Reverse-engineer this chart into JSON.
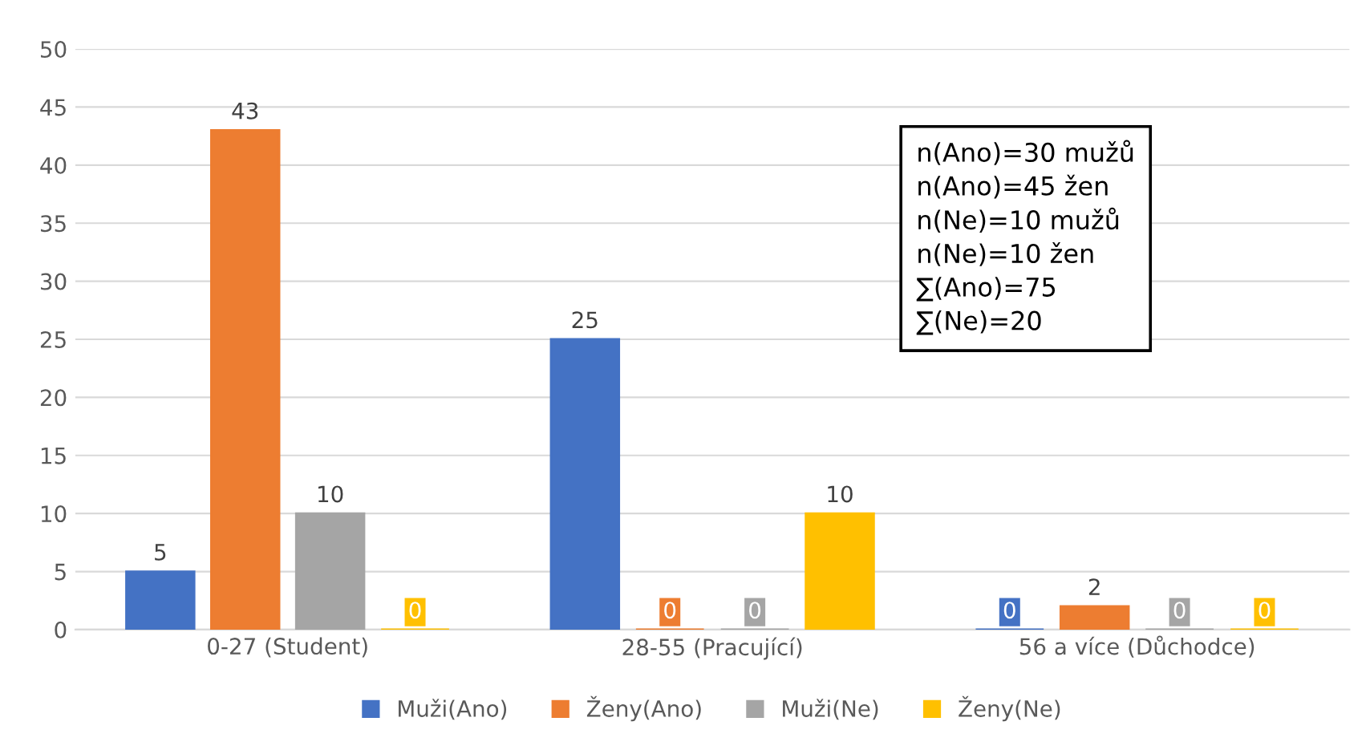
{
  "chart_data": {
    "type": "bar",
    "categories": [
      "0-27 (Student)",
      "28-55 (Pracující)",
      "56 a více (Důchodce)"
    ],
    "series": [
      {
        "name": "Muži(Ano)",
        "color": "#4472c4",
        "values": [
          5,
          25,
          0
        ]
      },
      {
        "name": "Ženy(Ano)",
        "color": "#ed7d31",
        "values": [
          43,
          0,
          2
        ]
      },
      {
        "name": "Muži(Ne)",
        "color": "#a5a5a5",
        "values": [
          10,
          0,
          0
        ]
      },
      {
        "name": "Ženy(Ne)",
        "color": "#ffc000",
        "values": [
          0,
          10,
          0
        ]
      }
    ],
    "ylim": [
      0,
      50
    ],
    "yticks": [
      0,
      5,
      10,
      15,
      20,
      25,
      30,
      35,
      40,
      45,
      50
    ],
    "grid": "y",
    "legend": "bottom",
    "data_labels": true,
    "annotations": [
      "n(Ano)=30 mužů",
      "n(Ano)=45 žen",
      "n(Ne)=10 mužů",
      "n(Ne)=10 žen",
      "∑(Ano)=75",
      "∑(Ne)=20"
    ]
  }
}
